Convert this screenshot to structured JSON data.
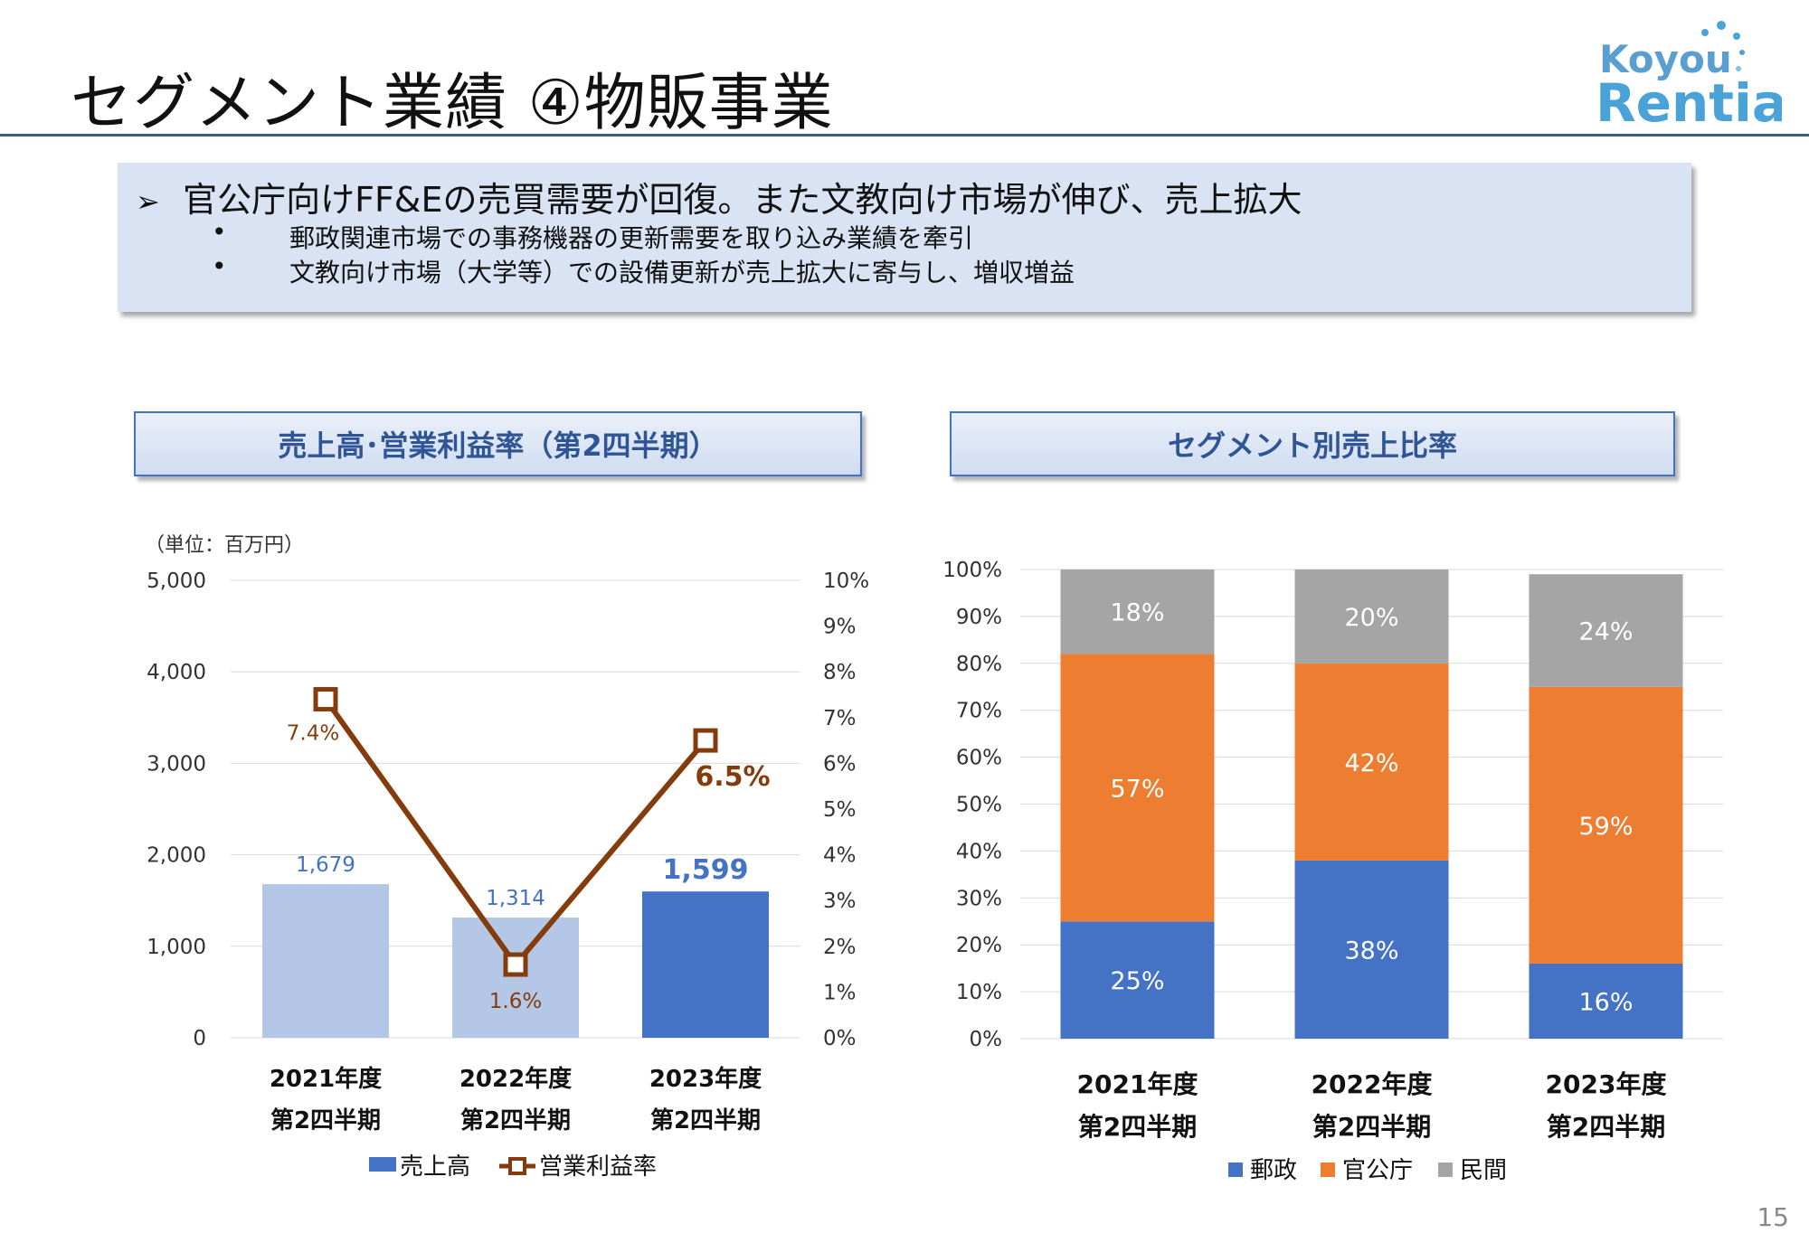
{
  "title": "セグメント業績 ④物販事業",
  "logo": {
    "line1": "Koyou",
    "line2": "Rentia"
  },
  "summary": {
    "arrow": "➢",
    "headline": "官公庁向けFF&Eの売買需要が回復。また文教向け市場が伸び、売上拡大",
    "bullet_glyph": "•",
    "bullets": [
      "郵政関連市場での事務機器の更新需要を取り込み業績を牽引",
      "文教向け市場（大学等）での設備更新が売上拡大に寄与し、増収増益"
    ]
  },
  "page_number": "15",
  "colors": {
    "light_bar": "#b4c7e7",
    "dark_bar": "#4472c4",
    "line": "#843c0c",
    "orange": "#ed7d31",
    "gray": "#a5a5a5",
    "blue": "#4472c4"
  },
  "chart_data": [
    {
      "type": "bar",
      "title": "売上高･営業利益率（第2四半期）",
      "unit_note": "（単位：百万円）",
      "categories": [
        [
          "2021年度",
          "第2四半期"
        ],
        [
          "2022年度",
          "第2四半期"
        ],
        [
          "2023年度",
          "第2四半期"
        ]
      ],
      "series": [
        {
          "name": "売上高",
          "kind": "bar",
          "axis": "left",
          "values": [
            1679,
            1314,
            1599
          ],
          "labels": [
            "1,679",
            "1,314",
            "1,599"
          ]
        },
        {
          "name": "営業利益率",
          "kind": "line",
          "axis": "right",
          "values": [
            7.4,
            1.6,
            6.5
          ],
          "labels": [
            "7.4%",
            "1.6%",
            "6.5%"
          ]
        }
      ],
      "ylim": [
        0,
        5000
      ],
      "yticks": [
        "0",
        "1,000",
        "2,000",
        "3,000",
        "4,000",
        "5,000"
      ],
      "y2lim": [
        0,
        10
      ],
      "y2ticks": [
        "0%",
        "1%",
        "2%",
        "3%",
        "4%",
        "5%",
        "6%",
        "7%",
        "8%",
        "9%",
        "10%"
      ],
      "grid": true,
      "legend": "bottom"
    },
    {
      "type": "bar",
      "stacked": true,
      "title": "セグメント別売上比率",
      "categories": [
        [
          "2021年度",
          "第2四半期"
        ],
        [
          "2022年度",
          "第2四半期"
        ],
        [
          "2023年度",
          "第2四半期"
        ]
      ],
      "series": [
        {
          "name": "郵政",
          "values": [
            25,
            38,
            16
          ]
        },
        {
          "name": "官公庁",
          "values": [
            57,
            42,
            59
          ]
        },
        {
          "name": "民間",
          "values": [
            18,
            20,
            24
          ]
        }
      ],
      "ylim": [
        0,
        100
      ],
      "yticks": [
        "0%",
        "10%",
        "20%",
        "30%",
        "40%",
        "50%",
        "60%",
        "70%",
        "80%",
        "90%",
        "100%"
      ],
      "grid": true,
      "legend": "bottom"
    }
  ]
}
